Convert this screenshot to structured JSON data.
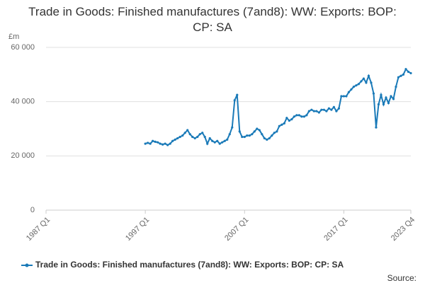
{
  "chart_data": {
    "type": "line",
    "title": "Trade in Goods: Finished manufactures (7and8): WW: Exports: BOP: CP: SA",
    "y_unit": "£m",
    "source": "Source:",
    "categories": [
      "1987 Q1",
      null,
      null,
      null,
      null,
      null,
      null,
      null,
      null,
      null,
      null,
      null,
      null,
      null,
      null,
      null,
      null,
      null,
      null,
      null,
      null,
      null,
      null,
      null,
      null,
      null,
      null,
      null,
      null,
      null,
      null,
      null,
      null,
      null,
      null,
      null,
      null,
      null,
      null,
      null,
      "1997 Q1",
      null,
      null,
      null,
      null,
      null,
      null,
      null,
      null,
      null,
      null,
      null,
      null,
      null,
      null,
      null,
      null,
      null,
      null,
      null,
      null,
      null,
      null,
      null,
      null,
      null,
      null,
      null,
      null,
      null,
      null,
      null,
      null,
      null,
      null,
      null,
      null,
      null,
      null,
      null,
      "2007 Q1",
      null,
      null,
      null,
      null,
      null,
      null,
      null,
      null,
      null,
      null,
      null,
      null,
      null,
      null,
      null,
      null,
      null,
      null,
      null,
      null,
      null,
      null,
      null,
      null,
      null,
      null,
      null,
      null,
      null,
      null,
      null,
      null,
      null,
      null,
      null,
      null,
      null,
      null,
      null,
      "2017 Q1",
      null,
      null,
      null,
      null,
      null,
      null,
      null,
      null,
      null,
      null,
      null,
      null,
      null,
      null,
      null,
      null,
      null,
      null,
      null,
      null,
      null,
      null,
      null,
      null,
      null,
      null,
      "2023 Q4"
    ],
    "series": [
      {
        "name": "Trade in Goods: Finished manufactures (7and8): WW: Exports: BOP: CP: SA",
        "color": "#1a7ab8",
        "values": [
          null,
          null,
          null,
          null,
          null,
          null,
          null,
          null,
          null,
          null,
          null,
          null,
          null,
          null,
          null,
          null,
          null,
          null,
          null,
          null,
          null,
          null,
          null,
          null,
          null,
          null,
          null,
          null,
          null,
          null,
          null,
          null,
          null,
          null,
          null,
          null,
          null,
          null,
          null,
          null,
          24500,
          24800,
          24500,
          25500,
          25200,
          25000,
          24500,
          24200,
          24500,
          24000,
          24500,
          25500,
          26000,
          26500,
          27000,
          27500,
          28500,
          29500,
          28000,
          27000,
          26500,
          27000,
          28000,
          28500,
          27000,
          24500,
          26500,
          25500,
          25000,
          25500,
          24500,
          25000,
          25500,
          26000,
          28000,
          30500,
          40500,
          42500,
          29000,
          27000,
          27000,
          27500,
          27500,
          28000,
          29000,
          30000,
          29500,
          28000,
          26500,
          26000,
          26500,
          27500,
          28500,
          29000,
          31000,
          31500,
          32000,
          34000,
          33000,
          33500,
          34500,
          35000,
          35000,
          34500,
          34500,
          35000,
          36500,
          37000,
          36500,
          36500,
          36000,
          37000,
          37000,
          36500,
          37500,
          37000,
          38000,
          36500,
          37500,
          42000,
          42000,
          42000,
          43500,
          44500,
          45500,
          46000,
          46500,
          47500,
          48500,
          47000,
          49500,
          47000,
          43000,
          30500,
          39000,
          42500,
          39000,
          41500,
          39500,
          42000,
          41000,
          45500,
          49000,
          49500,
          50000,
          52000,
          51000,
          50500
        ]
      }
    ],
    "ylim": [
      0,
      60000
    ],
    "yticks": [
      0,
      {
        "value": 20000,
        "label": "20 000"
      },
      {
        "value": 40000,
        "label": "40 000"
      },
      {
        "value": 60000,
        "label": "60 000"
      }
    ],
    "grid": true
  }
}
